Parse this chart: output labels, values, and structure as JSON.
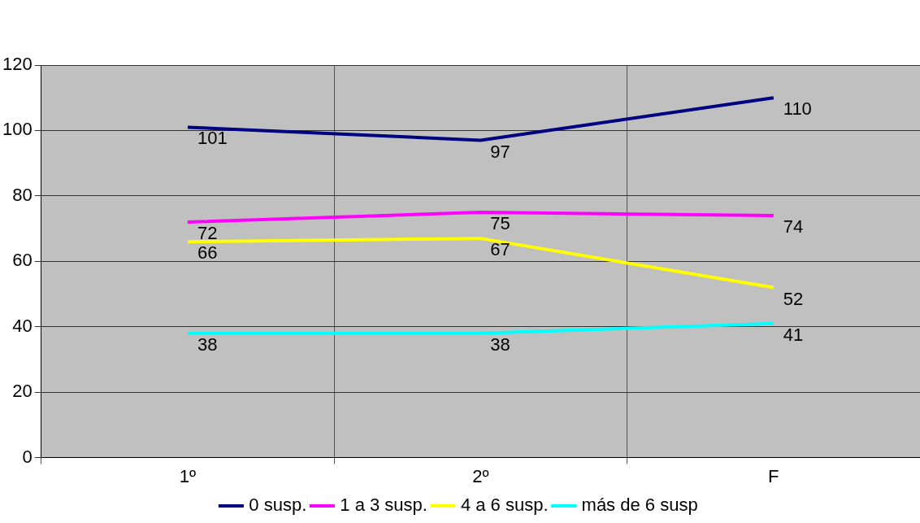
{
  "chart_data": {
    "type": "line",
    "categories": [
      "1º",
      "2º",
      "F"
    ],
    "series": [
      {
        "name": "0 susp.",
        "color": "#000080",
        "values": [
          101,
          97,
          110
        ]
      },
      {
        "name": "1 a 3 susp.",
        "color": "#ff00ff",
        "values": [
          72,
          75,
          74
        ]
      },
      {
        "name": "4 a 6 susp.",
        "color": "#ffff00",
        "values": [
          66,
          67,
          52
        ]
      },
      {
        "name": "más de 6 susp",
        "color": "#00ffff",
        "values": [
          38,
          38,
          41
        ]
      }
    ],
    "ylim": [
      0,
      120
    ],
    "yticks": [
      0,
      20,
      40,
      60,
      80,
      100,
      120
    ],
    "grid": true,
    "legend": "bottom",
    "marker": "none",
    "line_style": "solid",
    "data_labels": true
  }
}
